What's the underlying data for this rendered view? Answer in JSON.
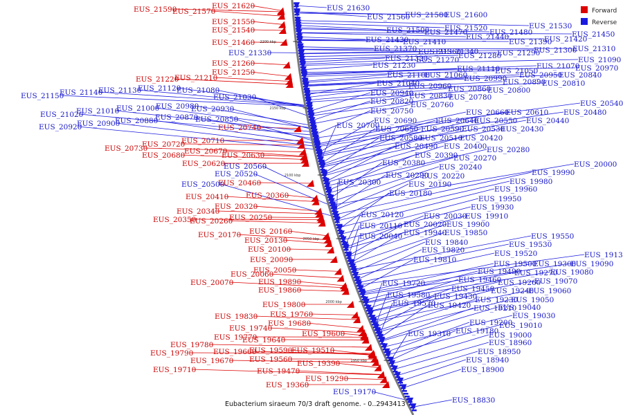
{
  "caption": "Eubacterium siraeum 70/3 draft genome. - 0..2943413",
  "legend": [
    {
      "label": "Forward",
      "color": "#dd0000"
    },
    {
      "label": "Reverse",
      "color": "#1a1adf"
    }
  ],
  "ruler_ticks": [
    "2200 kbp",
    "2150 kbp",
    "2100 kbp",
    "2050 kbp",
    "2000 kbp",
    "1950 kbp"
  ],
  "forward_labels": [
    "EUS_21590",
    "EUS_21570",
    "EUS_21620",
    "EUS_21550",
    "EUS_21540",
    "EUS_21460",
    "EUS_21260",
    "EUS_21250",
    "EUS_21220",
    "EUS_21210",
    "EUS_20740",
    "EUS_20710",
    "EUS_20720",
    "EUS_20730",
    "EUS_20670",
    "EUS_20680",
    "EUS_20630",
    "EUS_20620",
    "EUS_20460",
    "EUS_20360",
    "EUS_20410",
    "EUS_20320",
    "EUS_20340",
    "EUS_20250",
    "EUS_20350",
    "EUS_20260",
    "EUS_20160",
    "EUS_20170",
    "EUS_20130",
    "EUS_20100",
    "EUS_20090",
    "EUS_20050",
    "EUS_20060",
    "EUS_20070",
    "EUS_19890",
    "EUS_19860",
    "EUS_19800",
    "EUS_19760",
    "EUS_19830",
    "EUS_19680",
    "EUS_19740",
    "EUS_19600",
    "EUS_19770",
    "EUS_19640",
    "EUS_19780",
    "EUS_19510",
    "EUS_19590",
    "EUS_19660",
    "EUS_19790",
    "EUS_19560",
    "EUS_19670",
    "EUS_19390",
    "EUS_19710",
    "EUS_19470",
    "EUS_19290",
    "EUS_19360"
  ],
  "reverse_labels": [
    "EUS_21630",
    "EUS_21560",
    "EUS_21580",
    "EUS_21600",
    "EUS_21530",
    "EUS_21520",
    "EUS_21500",
    "EUS_21470",
    "EUS_21480",
    "EUS_21440",
    "EUS_21450",
    "EUS_21430",
    "EUS_21410",
    "EUS_21390",
    "EUS_21420",
    "EUS_21370",
    "EUS_21360",
    "EUS_21310",
    "EUS_21330",
    "EUS_21340",
    "EUS_21300",
    "EUS_21290",
    "EUS_21280",
    "EUS_21320",
    "EUS_21270",
    "EUS_21090",
    "EUS_21230",
    "EUS_20970",
    "EUS_21110",
    "EUS_21050",
    "EUS_21070",
    "EUS_21100",
    "EUS_21060",
    "EUS_20990",
    "EUS_20950",
    "EUS_20840",
    "EUS_20890",
    "EUS_20810",
    "EUS_21040",
    "EUS_20960",
    "EUS_20860",
    "EUS_20800",
    "EUS_21150",
    "EUS_21140",
    "EUS_21130",
    "EUS_21120",
    "EUS_21080",
    "EUS_20940",
    "EUS_20830",
    "EUS_20780",
    "EUS_21030",
    "EUS_20820",
    "EUS_20760",
    "EUS_20980",
    "EUS_21000",
    "EUS_20930",
    "EUS_21010",
    "EUS_21020",
    "EUS_20750",
    "EUS_20870",
    "EUS_20850",
    "EUS_20880",
    "EUS_20900",
    "EUS_20920",
    "EUS_20540",
    "EUS_20660",
    "EUS_20610",
    "EUS_20480",
    "EUS_20690",
    "EUS_20640",
    "EUS_20550",
    "EUS_20440",
    "EUS_20700",
    "EUS_20650",
    "EUS_20590",
    "EUS_20530",
    "EUS_20430",
    "EUS_20580",
    "EUS_20510",
    "EUS_20420",
    "EUS_20490",
    "EUS_20400",
    "EUS_20280",
    "EUS_20390",
    "EUS_20270",
    "EUS_20560",
    "EUS_20380",
    "EUS_20240",
    "EUS_20520",
    "EUS_20290",
    "EUS_20220",
    "EUS_20000",
    "EUS_20500",
    "EUS_20300",
    "EUS_20190",
    "EUS_19990",
    "EUS_19980",
    "EUS_20180",
    "EUS_19960",
    "EUS_19950",
    "EUS_19930",
    "EUS_20120",
    "EUS_20030",
    "EUS_19910",
    "EUS_20110",
    "EUS_20020",
    "EUS_19900",
    "EUS_19940",
    "EUS_19850",
    "EUS_20040",
    "EUS_19840",
    "EUS_19550",
    "EUS_19530",
    "EUS_19820",
    "EUS_19520",
    "EUS_19130",
    "EUS_19810",
    "EUS_19500",
    "EUS_19300",
    "EUS_19090",
    "EUS_19490",
    "EUS_19270",
    "EUS_19080",
    "EUS_19460",
    "EUS_19260",
    "EUS_19070",
    "EUS_19720",
    "EUS_19450",
    "EUS_19240",
    "EUS_19060",
    "EUS_19580",
    "EUS_19430",
    "EUS_19230",
    "EUS_19050",
    "EUS_19570",
    "EUS_19420",
    "EUS_19210",
    "EUS_19040",
    "EUS_19030",
    "EUS_19200",
    "EUS_19010",
    "EUS_19310",
    "EUS_19180",
    "EUS_19000",
    "EUS_18960",
    "EUS_18950",
    "EUS_18940",
    "EUS_18900",
    "EUS_19170",
    "EUS_18830"
  ]
}
